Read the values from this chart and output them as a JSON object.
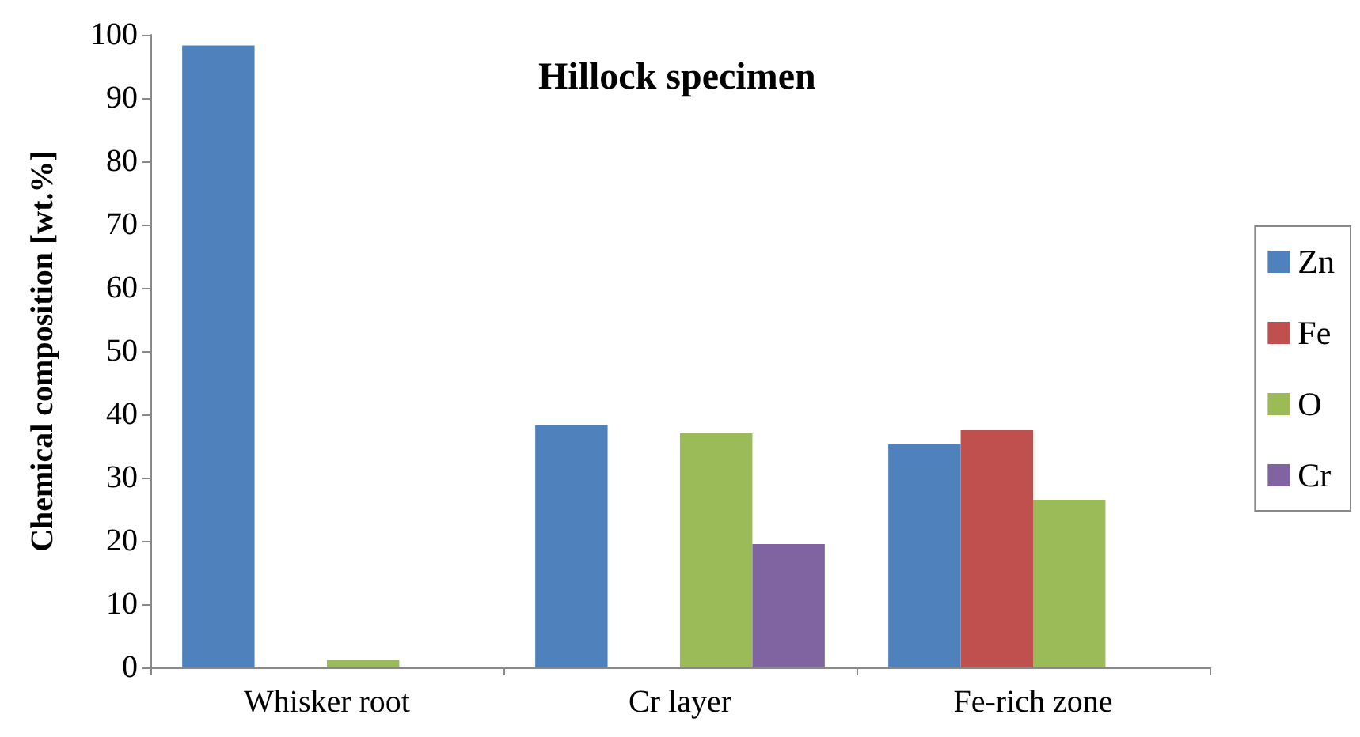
{
  "chart_data": {
    "type": "bar",
    "title": "Hillock specimen",
    "ylabel": "Chemical composition [wt.%]",
    "categories": [
      "Whisker root",
      "Cr layer",
      "Fe-rich zone"
    ],
    "series": [
      {
        "name": "Zn",
        "color": "#4f81bd",
        "values": [
          98.3,
          38.3,
          35.3
        ]
      },
      {
        "name": "Fe",
        "color": "#c0504d",
        "values": [
          0,
          0,
          37.5
        ]
      },
      {
        "name": "O",
        "color": "#9bbb59",
        "values": [
          1.2,
          37,
          26.5
        ]
      },
      {
        "name": "Cr",
        "color": "#8064a2",
        "values": [
          0,
          19.5,
          0
        ]
      }
    ],
    "ylim": [
      0,
      100
    ],
    "yticks": [
      0,
      10,
      20,
      30,
      40,
      50,
      60,
      70,
      80,
      90,
      100
    ],
    "grid": false,
    "legend": "right"
  }
}
